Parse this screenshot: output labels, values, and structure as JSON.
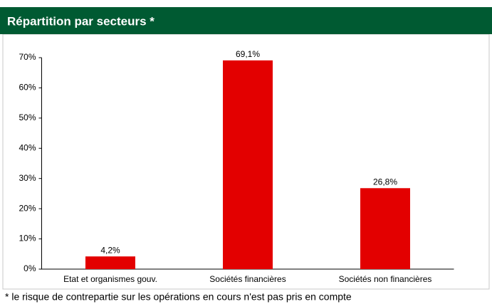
{
  "chart_data": {
    "type": "bar",
    "title": "Répartition par secteurs *",
    "categories": [
      "Etat et organismes gouv.",
      "Sociétés financières",
      "Sociétés non financières"
    ],
    "values": [
      4.2,
      69.1,
      26.8
    ],
    "value_labels": [
      "4,2%",
      "69,1%",
      "26,8%"
    ],
    "color": "#e30000",
    "ylim": [
      0,
      70
    ],
    "yticks": [
      {
        "value": 0,
        "label": "0%"
      },
      {
        "value": 10,
        "label": "10%"
      },
      {
        "value": 20,
        "label": "20%"
      },
      {
        "value": 30,
        "label": "30%"
      },
      {
        "value": 40,
        "label": "40%"
      },
      {
        "value": 50,
        "label": "50%"
      },
      {
        "value": 60,
        "label": "60%"
      },
      {
        "value": 70,
        "label": "70%"
      }
    ],
    "grid": false,
    "footnote": "* le risque de contrepartie sur les opérations en cours n'est pas pris en compte"
  }
}
